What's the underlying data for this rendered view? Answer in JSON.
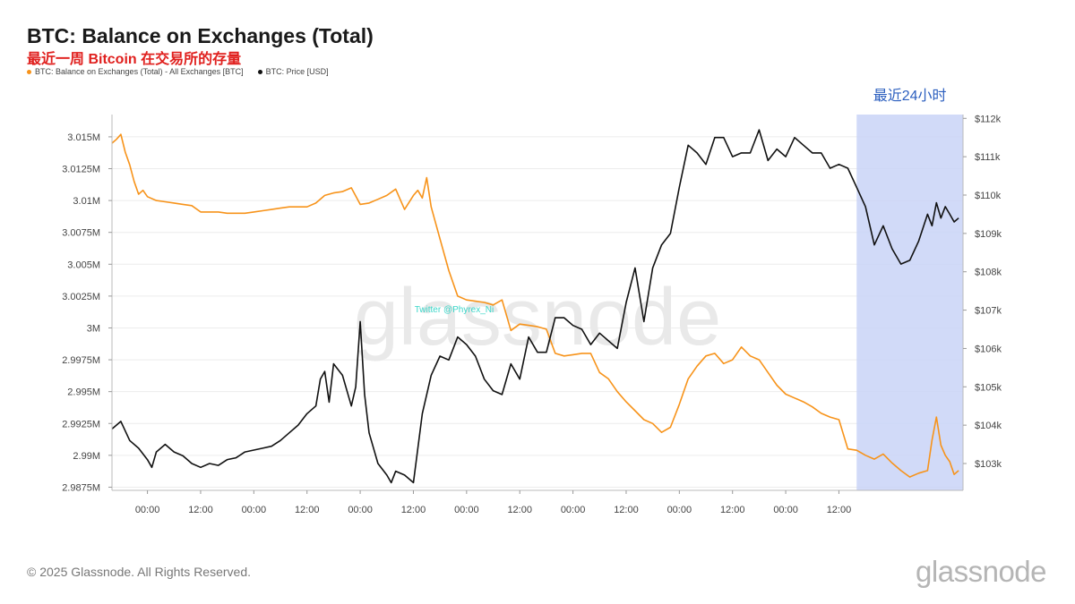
{
  "header": {
    "title": "BTC: Balance on Exchanges (Total)",
    "subtitle": "最近一周 Bitcoin 在交易所的存量"
  },
  "legend": [
    {
      "label": "BTC: Balance on Exchanges (Total) - All Exchanges [BTC]",
      "color": "#f7931a"
    },
    {
      "label": "BTC: Price [USD]",
      "color": "#111111"
    }
  ],
  "footer": {
    "copyright": "© 2025 Glassnode. All Rights Reserved.",
    "logo": "glassnode"
  },
  "watermark": "glassnode",
  "twitter_label": "Twitter @Phyrex_Ni",
  "highlight": {
    "label": "最近24小时",
    "start_hour": 160,
    "end_hour": 184,
    "color": "#c9d3f7"
  },
  "chart_data": {
    "type": "line",
    "title": "BTC: Balance on Exchanges (Total)",
    "x_unit": "hours",
    "xlim": [
      -8,
      184
    ],
    "x_tick_labels": [
      "00:00",
      "12:00",
      "00:00",
      "12:00",
      "00:00",
      "12:00",
      "00:00",
      "12:00",
      "00:00",
      "12:00",
      "00:00",
      "12:00",
      "00:00",
      "12:00"
    ],
    "x_tick_positions": [
      0,
      12,
      24,
      36,
      48,
      60,
      72,
      84,
      96,
      108,
      120,
      132,
      144,
      156
    ],
    "left_axis": {
      "ylim": [
        2.98725,
        3.01675
      ],
      "ticks": [
        2.9875,
        2.99,
        2.9925,
        2.995,
        2.9975,
        3.0,
        3.0025,
        3.005,
        3.0075,
        3.01,
        3.0125,
        3.015
      ],
      "tick_labels": [
        "2.9875M",
        "2.99M",
        "2.9925M",
        "2.995M",
        "2.9975M",
        "3M",
        "3.0025M",
        "3.005M",
        "3.0075M",
        "3.01M",
        "3.0125M",
        "3.015M"
      ]
    },
    "right_axis": {
      "ylim": [
        102.3,
        112.1
      ],
      "ticks": [
        103,
        104,
        105,
        106,
        107,
        108,
        109,
        110,
        111,
        112
      ],
      "tick_labels": [
        "$103k",
        "$104k",
        "$105k",
        "$106k",
        "$107k",
        "$108k",
        "$109k",
        "$110k",
        "$111k",
        "$112k"
      ]
    },
    "grid": true,
    "series": [
      {
        "name": "BTC: Balance on Exchanges (Total) - All Exchanges [BTC]",
        "axis": "left",
        "color": "#f7931a",
        "x": [
          -8,
          -7,
          -6,
          -5,
          -4,
          -3,
          -2,
          -1,
          0,
          2,
          4,
          6,
          8,
          10,
          12,
          14,
          16,
          18,
          20,
          22,
          24,
          26,
          28,
          30,
          32,
          34,
          36,
          38,
          40,
          42,
          44,
          46,
          48,
          50,
          52,
          54,
          56,
          58,
          60,
          61,
          62,
          63,
          64,
          66,
          68,
          70,
          72,
          74,
          76,
          78,
          80,
          82,
          84,
          86,
          88,
          90,
          92,
          94,
          96,
          98,
          100,
          102,
          104,
          106,
          108,
          110,
          112,
          114,
          116,
          118,
          120,
          122,
          124,
          126,
          128,
          130,
          132,
          134,
          136,
          138,
          140,
          142,
          144,
          146,
          148,
          150,
          152,
          154,
          156,
          158,
          160,
          162,
          164,
          166,
          168,
          170,
          172,
          174,
          176,
          177,
          178,
          179,
          180,
          181,
          182,
          183
        ],
        "values": [
          3.0145,
          3.0148,
          3.0152,
          3.0138,
          3.0128,
          3.0115,
          3.0105,
          3.0108,
          3.0103,
          3.01,
          3.0099,
          3.0098,
          3.0097,
          3.0096,
          3.0091,
          3.0091,
          3.0091,
          3.009,
          3.009,
          3.009,
          3.0091,
          3.0092,
          3.0093,
          3.0094,
          3.0095,
          3.0095,
          3.0095,
          3.0098,
          3.0104,
          3.0106,
          3.0107,
          3.011,
          3.0097,
          3.0098,
          3.0101,
          3.0104,
          3.0109,
          3.0093,
          3.0104,
          3.0108,
          3.0102,
          3.0118,
          3.0095,
          3.007,
          3.0045,
          3.0025,
          3.0022,
          3.0021,
          3.002,
          3.0018,
          3.0022,
          2.9998,
          3.0003,
          3.0002,
          3.0001,
          2.9999,
          2.998,
          2.9978,
          2.9979,
          2.998,
          2.998,
          2.9965,
          2.996,
          2.995,
          2.9942,
          2.9935,
          2.9928,
          2.9925,
          2.9918,
          2.9922,
          2.994,
          2.996,
          2.997,
          2.9978,
          2.998,
          2.9972,
          2.9975,
          2.9985,
          2.9978,
          2.9975,
          2.9965,
          2.9955,
          2.9948,
          2.9945,
          2.9942,
          2.9938,
          2.9933,
          2.993,
          2.9928,
          2.9905,
          2.9904,
          2.99,
          2.9897,
          2.9901,
          2.9894,
          2.9888,
          2.9883,
          2.9886,
          2.9888,
          2.9912,
          2.993,
          2.9908,
          2.99,
          2.9895,
          2.9885,
          2.9888
        ]
      },
      {
        "name": "BTC: Price [USD]",
        "axis": "right",
        "color": "#111111",
        "x": [
          -8,
          -6,
          -4,
          -2,
          0,
          1,
          2,
          4,
          6,
          8,
          10,
          12,
          14,
          16,
          18,
          20,
          22,
          24,
          26,
          28,
          30,
          32,
          34,
          36,
          38,
          39,
          40,
          41,
          42,
          44,
          46,
          47,
          48,
          49,
          50,
          52,
          54,
          55,
          56,
          58,
          60,
          62,
          64,
          66,
          68,
          70,
          72,
          74,
          76,
          78,
          80,
          82,
          84,
          86,
          88,
          90,
          92,
          94,
          96,
          98,
          100,
          102,
          104,
          106,
          108,
          110,
          112,
          114,
          116,
          118,
          120,
          122,
          124,
          126,
          128,
          130,
          132,
          134,
          136,
          138,
          140,
          142,
          144,
          146,
          148,
          150,
          152,
          154,
          156,
          158,
          160,
          162,
          164,
          166,
          168,
          170,
          172,
          174,
          176,
          177,
          178,
          179,
          180,
          181,
          182,
          183
        ],
        "values": [
          103.9,
          104.1,
          103.6,
          103.4,
          103.1,
          102.9,
          103.3,
          103.5,
          103.3,
          103.2,
          103.0,
          102.9,
          103.0,
          102.95,
          103.1,
          103.15,
          103.3,
          103.35,
          103.4,
          103.45,
          103.6,
          103.8,
          104.0,
          104.3,
          104.5,
          105.2,
          105.4,
          104.6,
          105.6,
          105.3,
          104.5,
          105.0,
          106.7,
          104.8,
          103.8,
          103.0,
          102.7,
          102.5,
          102.8,
          102.7,
          102.5,
          104.3,
          105.3,
          105.8,
          105.7,
          106.3,
          106.1,
          105.8,
          105.2,
          104.9,
          104.8,
          105.6,
          105.2,
          106.3,
          105.9,
          105.9,
          106.8,
          106.8,
          106.6,
          106.5,
          106.1,
          106.4,
          106.2,
          106.0,
          107.2,
          108.1,
          106.7,
          108.1,
          108.7,
          109.0,
          110.2,
          111.3,
          111.1,
          110.8,
          111.5,
          111.5,
          111.0,
          111.1,
          111.1,
          111.7,
          110.9,
          111.2,
          111.0,
          111.5,
          111.3,
          111.1,
          111.1,
          110.7,
          110.8,
          110.7,
          110.2,
          109.7,
          108.7,
          109.2,
          108.6,
          108.2,
          108.3,
          108.8,
          109.5,
          109.2,
          109.8,
          109.4,
          109.7,
          109.5,
          109.3,
          109.4
        ]
      }
    ]
  }
}
